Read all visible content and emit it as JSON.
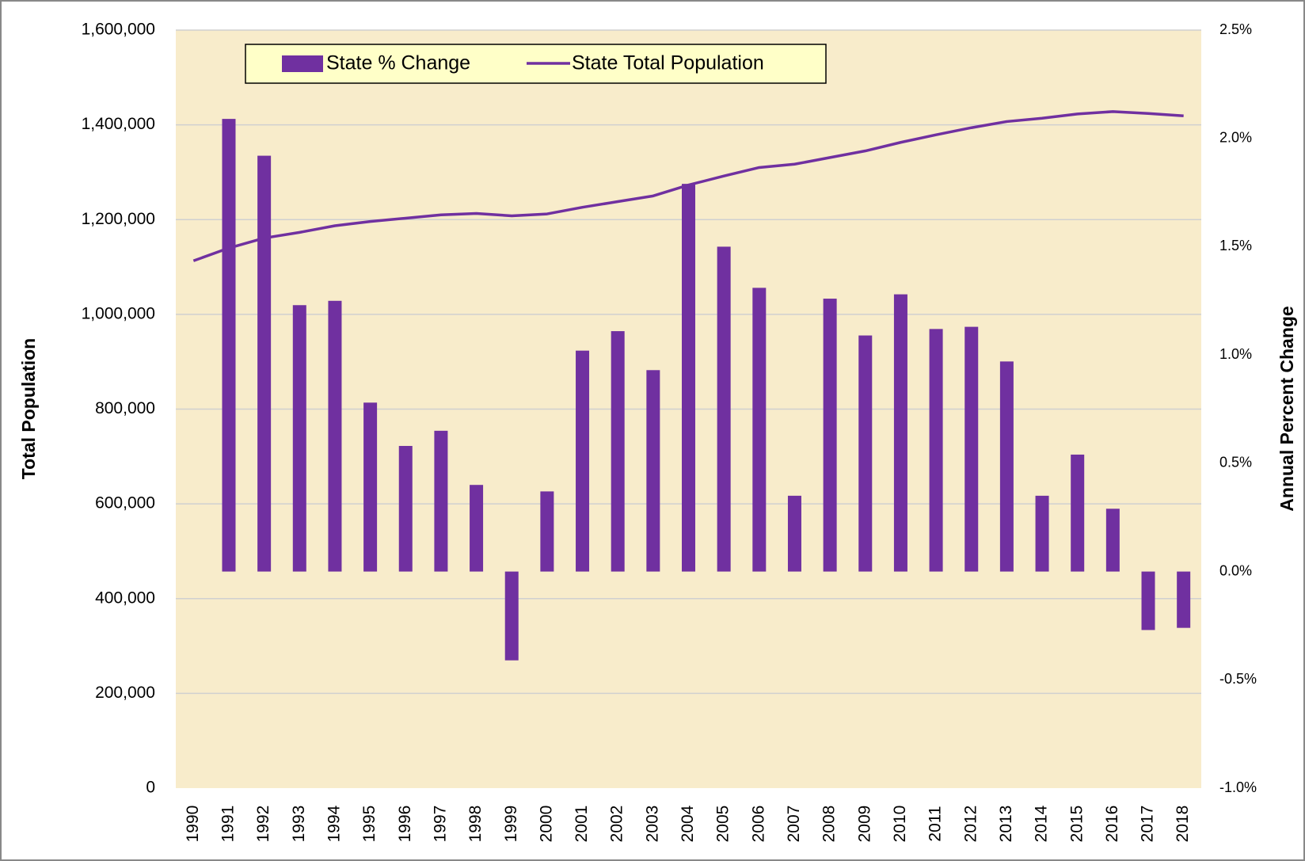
{
  "chart_data": {
    "type": "bar-line",
    "y_label": "Total Population",
    "y2_label": "Annual Percent Change",
    "categories": [
      "1990",
      "1991",
      "1992",
      "1993",
      "1994",
      "1995",
      "1996",
      "1997",
      "1998",
      "1999",
      "2000",
      "2001",
      "2002",
      "2003",
      "2004",
      "2005",
      "2006",
      "2007",
      "2008",
      "2009",
      "2010",
      "2011",
      "2012",
      "2013",
      "2014",
      "2015",
      "2016",
      "2017",
      "2018"
    ],
    "series": [
      {
        "name": "State % Change",
        "type": "bar",
        "axis": "y2",
        "color": "#7030a0",
        "values": [
          null,
          2.09,
          1.92,
          1.23,
          1.25,
          0.78,
          0.58,
          0.65,
          0.4,
          -0.41,
          0.37,
          1.02,
          1.11,
          0.93,
          1.79,
          1.5,
          1.31,
          0.35,
          1.26,
          1.09,
          1.28,
          1.12,
          1.13,
          0.97,
          0.35,
          0.54,
          0.29,
          -0.27,
          -0.26
        ]
      },
      {
        "name": "State Total Population",
        "type": "line",
        "color": "#7030a0",
        "values": [
          1113000,
          1140000,
          1161000,
          1173000,
          1187000,
          1196000,
          1203000,
          1210000,
          1213000,
          1208000,
          1212000,
          1226000,
          1238000,
          1250000,
          1273000,
          1292000,
          1310000,
          1317000,
          1331000,
          1345000,
          1363000,
          1379000,
          1394000,
          1407000,
          1414000,
          1423000,
          1428000,
          1424000,
          1419000
        ]
      }
    ],
    "ylim": [
      0,
      1600000
    ],
    "yticks": [
      0,
      {
        "value": 200000,
        "label": "200,000"
      },
      {
        "value": 400000,
        "label": "400,000"
      },
      {
        "value": 600000,
        "label": "600,000"
      },
      {
        "value": 800000,
        "label": "800,000"
      },
      {
        "value": 1000000,
        "label": "1,000,000"
      },
      {
        "value": 1200000,
        "label": "1,200,000"
      },
      {
        "value": 1400000,
        "label": "1,400,000"
      },
      {
        "value": 1600000,
        "label": "1,600,000"
      }
    ],
    "y2lim": [
      -1.0,
      2.5
    ],
    "y2ticks": [
      {
        "value": -1.0,
        "label": "-1.0%"
      },
      {
        "value": -0.5,
        "label": "-0.5%"
      },
      {
        "value": 0,
        "label": "0.0%"
      },
      {
        "value": 0.5,
        "label": "0.5%"
      },
      {
        "value": 1.0,
        "label": "1.0%"
      },
      {
        "value": 1.5,
        "label": "1.5%"
      },
      {
        "value": 2.0,
        "label": "2.0%"
      },
      {
        "value": 2.5,
        "label": "2.5%"
      }
    ],
    "grid": true,
    "legend": "top"
  }
}
